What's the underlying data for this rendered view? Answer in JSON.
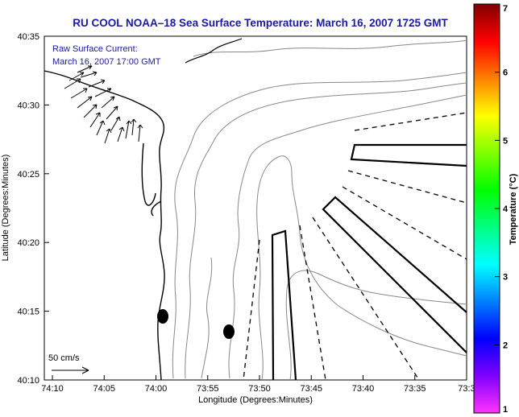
{
  "chart_data": {
    "type": "map",
    "title": "RU COOL  NOAA–18  Sea Surface Temperature:  March 16, 2007 1725 GMT",
    "xlabel": "Longitude (Degrees:Minutes)",
    "ylabel": "Latitude (Degrees:Minutes)",
    "x_ticks": [
      "74:10",
      "74:05",
      "74:00",
      "73:55",
      "73:50",
      "73:45",
      "73:40",
      "73:35",
      "73:3"
    ],
    "y_ticks": [
      "40:35",
      "40:30",
      "40:25",
      "40:20",
      "40:15",
      "40:10"
    ],
    "annotation_lines": [
      "Raw Surface Current:",
      "March 16, 2007 17:00 GMT"
    ],
    "scale_label": "50 cm/s",
    "colorbar": {
      "label": "Temperature (°C)",
      "min": 1,
      "max": 7,
      "ticks": [
        "1",
        "2",
        "3",
        "4",
        "5",
        "6",
        "7"
      ],
      "colors": [
        "#ff33ff",
        "#8000ff",
        "#0000ff",
        "#0080ff",
        "#00ffff",
        "#00ff80",
        "#00ff00",
        "#80ff00",
        "#ffff00",
        "#ff8000",
        "#ff0000",
        "#800000"
      ]
    },
    "station_markers": 2
  }
}
